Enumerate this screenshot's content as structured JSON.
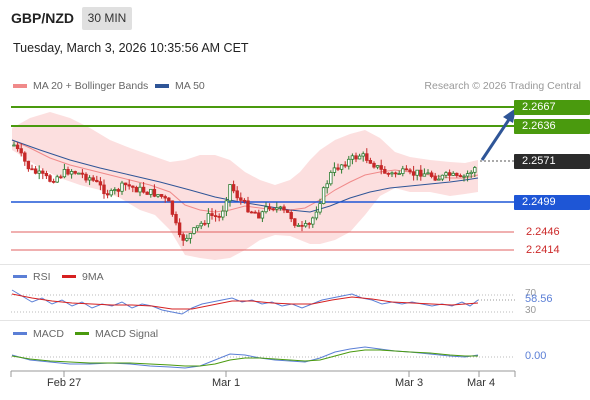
{
  "header": {
    "symbol": "GBP/NZD",
    "timeframe": "30 MIN",
    "datetime": "Tuesday, March 3, 2026 10:35:56 AM CET"
  },
  "legend": {
    "ma20": "MA 20 + Bollinger Bands",
    "ma50": "MA 50",
    "ma20_color": "#f08a8a",
    "ma50_color": "#2f5597",
    "credit": "Research © 2026 Trading Central"
  },
  "levels": [
    {
      "label": "2.2667",
      "kind": "resistance",
      "color": "#4a9a0e"
    },
    {
      "label": "2.2636",
      "kind": "resistance",
      "color": "#4a9a0e"
    },
    {
      "label": "2.2571",
      "kind": "current",
      "color": "#2b2b2b"
    },
    {
      "label": "2.2499",
      "kind": "pivot",
      "color": "#1e56d6"
    },
    {
      "label": "2.2446",
      "kind": "support",
      "color": "#cc2a2a"
    },
    {
      "label": "2.2414",
      "kind": "support",
      "color": "#cc2a2a"
    }
  ],
  "rsi": {
    "title": "RSI",
    "ma_title": "9MA",
    "value": "58.56",
    "upper": "70",
    "lower": "30",
    "color": "#5b7fd6",
    "ma_color": "#d62020"
  },
  "macd": {
    "title": "MACD",
    "signal_title": "MACD Signal",
    "value": "0.00",
    "color": "#5b7fd6",
    "signal_color": "#4a9a0e"
  },
  "x_axis": [
    "Feb 27",
    "Mar 1",
    "Mar 3",
    "Mar 4"
  ]
}
